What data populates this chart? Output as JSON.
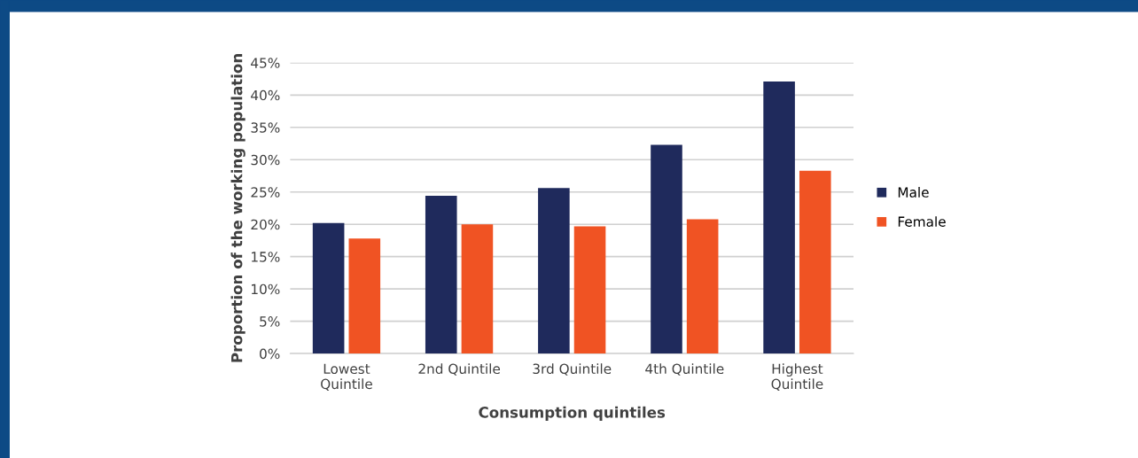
{
  "chart_data": {
    "type": "bar",
    "xlabel": "Consumption quintiles",
    "ylabel": "Proportion of the working population",
    "categories": [
      "Lowest\nQuintile",
      "2nd Quintile",
      "3rd Quintile",
      "4th Quintile",
      "Highest\nQuintile"
    ],
    "series": [
      {
        "name": "Male",
        "color": "#1f2a5c",
        "values": [
          20.2,
          24.4,
          25.6,
          32.3,
          42.1
        ]
      },
      {
        "name": "Female",
        "color": "#f05323",
        "values": [
          17.8,
          20.0,
          19.7,
          20.8,
          28.3
        ]
      }
    ],
    "ylim": [
      0,
      45
    ],
    "yticks": [
      {
        "value": 0,
        "label": "0%"
      },
      {
        "value": 5,
        "label": "5%"
      },
      {
        "value": 10,
        "label": "10%"
      },
      {
        "value": 15,
        "label": "15%"
      },
      {
        "value": 20,
        "label": "20%"
      },
      {
        "value": 25,
        "label": "25%"
      },
      {
        "value": 30,
        "label": "30%"
      },
      {
        "value": 35,
        "label": "35%"
      },
      {
        "value": 40,
        "label": "40%"
      },
      {
        "value": 45,
        "label": "45%"
      }
    ],
    "grid": "y",
    "legend": "right"
  }
}
